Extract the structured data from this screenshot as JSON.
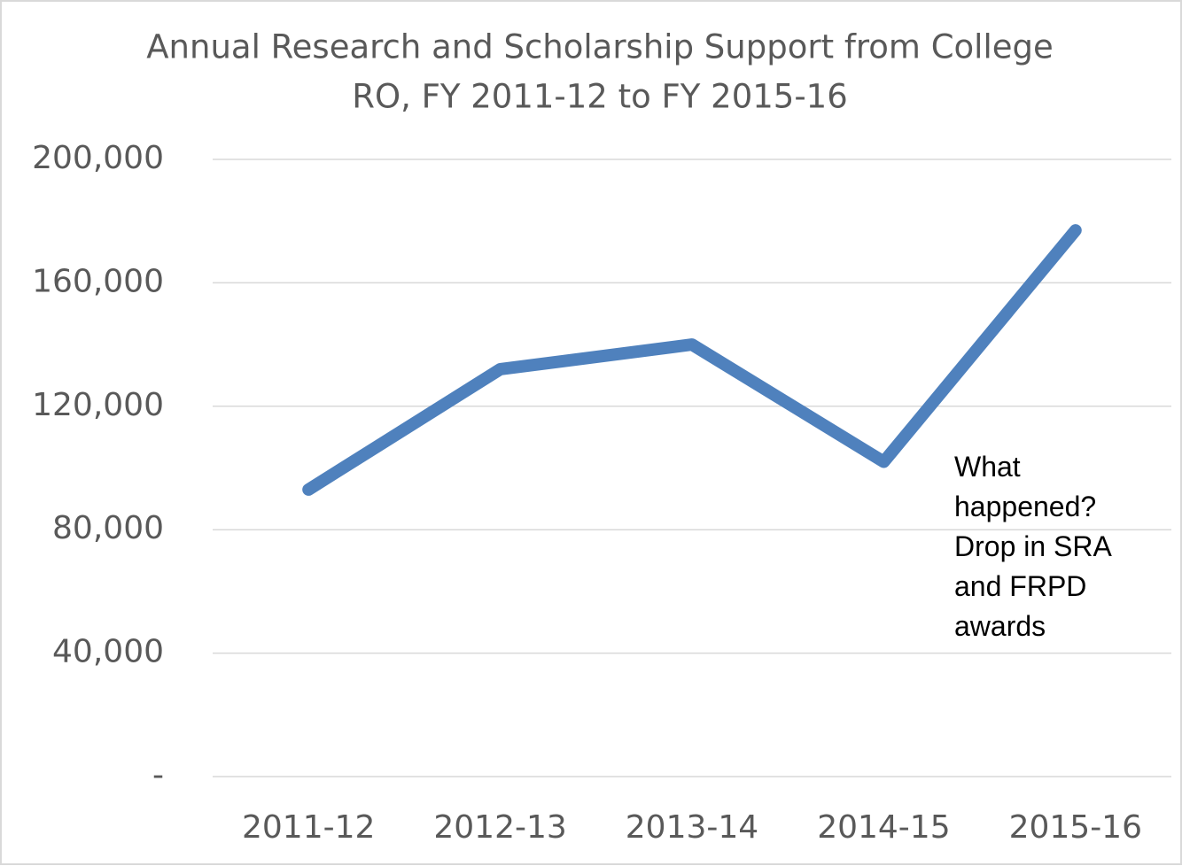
{
  "chart_data": {
    "type": "line",
    "title": [
      "Annual Research and Scholarship Support from College",
      "RO, FY 2011-12 to FY 2015-16"
    ],
    "categories": [
      "2011-12",
      "2012-13",
      "2013-14",
      "2014-15",
      "2015-16"
    ],
    "series": [
      {
        "color": "#4f81bd",
        "values": [
          93000,
          132000,
          140000,
          102000,
          177000
        ]
      }
    ],
    "ylim": [
      0,
      200000
    ],
    "yticks": [
      {
        "value": 0,
        "label": "-"
      },
      {
        "value": 40000,
        "label": "40,000"
      },
      {
        "value": 80000,
        "label": "80,000"
      },
      {
        "value": 120000,
        "label": "120,000"
      },
      {
        "value": 160000,
        "label": "160,000"
      },
      {
        "value": 200000,
        "label": "200,000"
      }
    ],
    "grid": true,
    "annotation": "What happened? Drop in SRA and FRPD awards"
  }
}
